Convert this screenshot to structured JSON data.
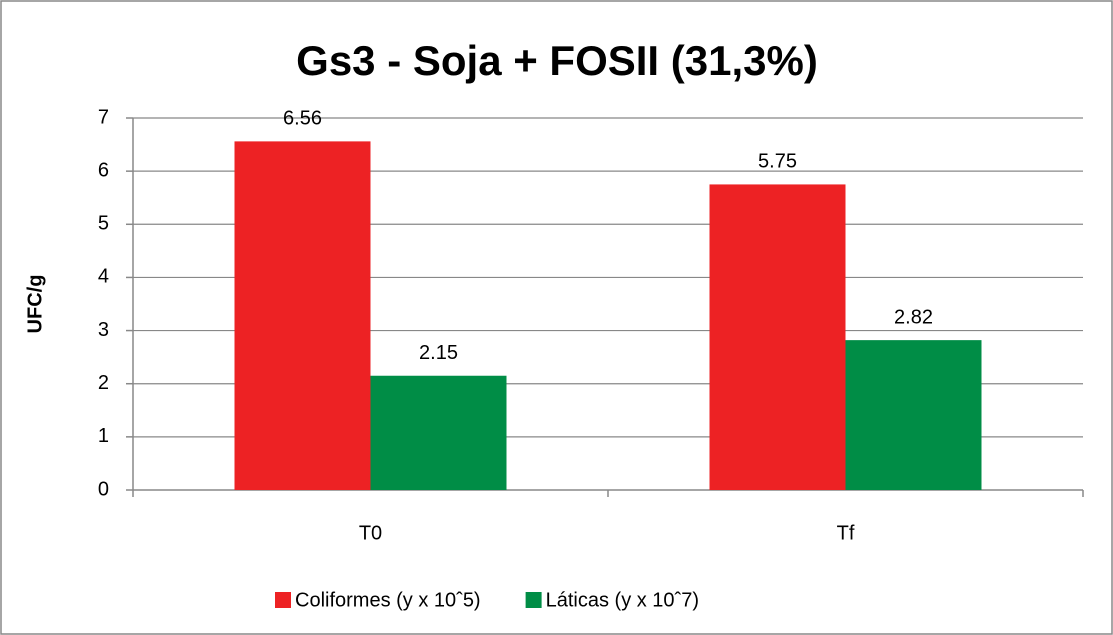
{
  "chart_data": {
    "type": "bar",
    "title": "Gs3 - Soja + FOSII (31,3%)",
    "y_label": "UFC/g",
    "categories": [
      "T0",
      "Tf"
    ],
    "series": [
      {
        "name": "Coliformes (y x 10ˆ5)",
        "color": "#ed2224",
        "values": [
          6.56,
          5.75
        ]
      },
      {
        "name": "Láticas (y x 10ˆ7)",
        "color": "#008d46",
        "values": [
          2.15,
          2.82
        ]
      }
    ],
    "ylim": [
      0,
      7
    ],
    "yticks": [
      0,
      1,
      2,
      3,
      4,
      5,
      6,
      7
    ],
    "grid": true,
    "legend": "bottom"
  }
}
